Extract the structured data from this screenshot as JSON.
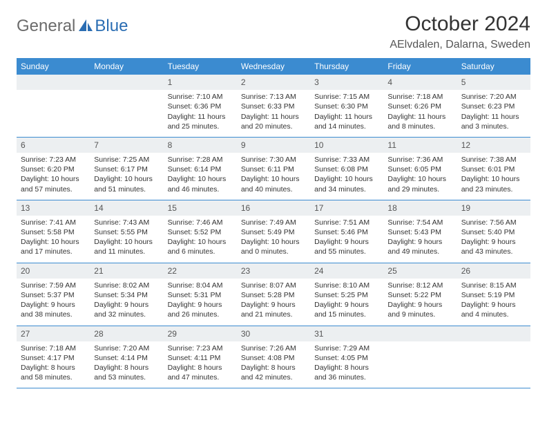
{
  "logo": {
    "word1": "General",
    "word2": "Blue",
    "color1": "#6b6b6b",
    "color2": "#2a6db3"
  },
  "header": {
    "title": "October 2024",
    "location": "AElvdalen, Dalarna, Sweden"
  },
  "style": {
    "header_bg": "#3b8bd0",
    "header_fg": "#ffffff",
    "daynum_bg": "#eceff1",
    "row_border": "#3b8bd0",
    "page_bg": "#ffffff"
  },
  "weekdays": [
    "Sunday",
    "Monday",
    "Tuesday",
    "Wednesday",
    "Thursday",
    "Friday",
    "Saturday"
  ],
  "weeks": [
    [
      {
        "empty": true
      },
      {
        "empty": true
      },
      {
        "day": "1",
        "sunrise": "Sunrise: 7:10 AM",
        "sunset": "Sunset: 6:36 PM",
        "daylight1": "Daylight: 11 hours",
        "daylight2": "and 25 minutes."
      },
      {
        "day": "2",
        "sunrise": "Sunrise: 7:13 AM",
        "sunset": "Sunset: 6:33 PM",
        "daylight1": "Daylight: 11 hours",
        "daylight2": "and 20 minutes."
      },
      {
        "day": "3",
        "sunrise": "Sunrise: 7:15 AM",
        "sunset": "Sunset: 6:30 PM",
        "daylight1": "Daylight: 11 hours",
        "daylight2": "and 14 minutes."
      },
      {
        "day": "4",
        "sunrise": "Sunrise: 7:18 AM",
        "sunset": "Sunset: 6:26 PM",
        "daylight1": "Daylight: 11 hours",
        "daylight2": "and 8 minutes."
      },
      {
        "day": "5",
        "sunrise": "Sunrise: 7:20 AM",
        "sunset": "Sunset: 6:23 PM",
        "daylight1": "Daylight: 11 hours",
        "daylight2": "and 3 minutes."
      }
    ],
    [
      {
        "day": "6",
        "sunrise": "Sunrise: 7:23 AM",
        "sunset": "Sunset: 6:20 PM",
        "daylight1": "Daylight: 10 hours",
        "daylight2": "and 57 minutes."
      },
      {
        "day": "7",
        "sunrise": "Sunrise: 7:25 AM",
        "sunset": "Sunset: 6:17 PM",
        "daylight1": "Daylight: 10 hours",
        "daylight2": "and 51 minutes."
      },
      {
        "day": "8",
        "sunrise": "Sunrise: 7:28 AM",
        "sunset": "Sunset: 6:14 PM",
        "daylight1": "Daylight: 10 hours",
        "daylight2": "and 46 minutes."
      },
      {
        "day": "9",
        "sunrise": "Sunrise: 7:30 AM",
        "sunset": "Sunset: 6:11 PM",
        "daylight1": "Daylight: 10 hours",
        "daylight2": "and 40 minutes."
      },
      {
        "day": "10",
        "sunrise": "Sunrise: 7:33 AM",
        "sunset": "Sunset: 6:08 PM",
        "daylight1": "Daylight: 10 hours",
        "daylight2": "and 34 minutes."
      },
      {
        "day": "11",
        "sunrise": "Sunrise: 7:36 AM",
        "sunset": "Sunset: 6:05 PM",
        "daylight1": "Daylight: 10 hours",
        "daylight2": "and 29 minutes."
      },
      {
        "day": "12",
        "sunrise": "Sunrise: 7:38 AM",
        "sunset": "Sunset: 6:01 PM",
        "daylight1": "Daylight: 10 hours",
        "daylight2": "and 23 minutes."
      }
    ],
    [
      {
        "day": "13",
        "sunrise": "Sunrise: 7:41 AM",
        "sunset": "Sunset: 5:58 PM",
        "daylight1": "Daylight: 10 hours",
        "daylight2": "and 17 minutes."
      },
      {
        "day": "14",
        "sunrise": "Sunrise: 7:43 AM",
        "sunset": "Sunset: 5:55 PM",
        "daylight1": "Daylight: 10 hours",
        "daylight2": "and 11 minutes."
      },
      {
        "day": "15",
        "sunrise": "Sunrise: 7:46 AM",
        "sunset": "Sunset: 5:52 PM",
        "daylight1": "Daylight: 10 hours",
        "daylight2": "and 6 minutes."
      },
      {
        "day": "16",
        "sunrise": "Sunrise: 7:49 AM",
        "sunset": "Sunset: 5:49 PM",
        "daylight1": "Daylight: 10 hours",
        "daylight2": "and 0 minutes."
      },
      {
        "day": "17",
        "sunrise": "Sunrise: 7:51 AM",
        "sunset": "Sunset: 5:46 PM",
        "daylight1": "Daylight: 9 hours",
        "daylight2": "and 55 minutes."
      },
      {
        "day": "18",
        "sunrise": "Sunrise: 7:54 AM",
        "sunset": "Sunset: 5:43 PM",
        "daylight1": "Daylight: 9 hours",
        "daylight2": "and 49 minutes."
      },
      {
        "day": "19",
        "sunrise": "Sunrise: 7:56 AM",
        "sunset": "Sunset: 5:40 PM",
        "daylight1": "Daylight: 9 hours",
        "daylight2": "and 43 minutes."
      }
    ],
    [
      {
        "day": "20",
        "sunrise": "Sunrise: 7:59 AM",
        "sunset": "Sunset: 5:37 PM",
        "daylight1": "Daylight: 9 hours",
        "daylight2": "and 38 minutes."
      },
      {
        "day": "21",
        "sunrise": "Sunrise: 8:02 AM",
        "sunset": "Sunset: 5:34 PM",
        "daylight1": "Daylight: 9 hours",
        "daylight2": "and 32 minutes."
      },
      {
        "day": "22",
        "sunrise": "Sunrise: 8:04 AM",
        "sunset": "Sunset: 5:31 PM",
        "daylight1": "Daylight: 9 hours",
        "daylight2": "and 26 minutes."
      },
      {
        "day": "23",
        "sunrise": "Sunrise: 8:07 AM",
        "sunset": "Sunset: 5:28 PM",
        "daylight1": "Daylight: 9 hours",
        "daylight2": "and 21 minutes."
      },
      {
        "day": "24",
        "sunrise": "Sunrise: 8:10 AM",
        "sunset": "Sunset: 5:25 PM",
        "daylight1": "Daylight: 9 hours",
        "daylight2": "and 15 minutes."
      },
      {
        "day": "25",
        "sunrise": "Sunrise: 8:12 AM",
        "sunset": "Sunset: 5:22 PM",
        "daylight1": "Daylight: 9 hours",
        "daylight2": "and 9 minutes."
      },
      {
        "day": "26",
        "sunrise": "Sunrise: 8:15 AM",
        "sunset": "Sunset: 5:19 PM",
        "daylight1": "Daylight: 9 hours",
        "daylight2": "and 4 minutes."
      }
    ],
    [
      {
        "day": "27",
        "sunrise": "Sunrise: 7:18 AM",
        "sunset": "Sunset: 4:17 PM",
        "daylight1": "Daylight: 8 hours",
        "daylight2": "and 58 minutes."
      },
      {
        "day": "28",
        "sunrise": "Sunrise: 7:20 AM",
        "sunset": "Sunset: 4:14 PM",
        "daylight1": "Daylight: 8 hours",
        "daylight2": "and 53 minutes."
      },
      {
        "day": "29",
        "sunrise": "Sunrise: 7:23 AM",
        "sunset": "Sunset: 4:11 PM",
        "daylight1": "Daylight: 8 hours",
        "daylight2": "and 47 minutes."
      },
      {
        "day": "30",
        "sunrise": "Sunrise: 7:26 AM",
        "sunset": "Sunset: 4:08 PM",
        "daylight1": "Daylight: 8 hours",
        "daylight2": "and 42 minutes."
      },
      {
        "day": "31",
        "sunrise": "Sunrise: 7:29 AM",
        "sunset": "Sunset: 4:05 PM",
        "daylight1": "Daylight: 8 hours",
        "daylight2": "and 36 minutes."
      },
      {
        "empty": true
      },
      {
        "empty": true
      }
    ]
  ]
}
